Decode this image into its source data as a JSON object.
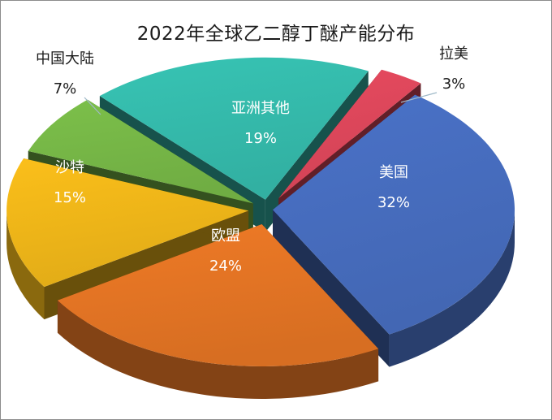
{
  "chart_data": {
    "type": "pie",
    "title": "2022年全球乙二醇丁醚产能分布",
    "slices": [
      {
        "name": "美国",
        "value": 32,
        "label": "32%",
        "color": "#4a72c8"
      },
      {
        "name": "欧盟",
        "value": 24,
        "label": "24%",
        "color": "#ef7a26"
      },
      {
        "name": "沙特",
        "value": 15,
        "label": "15%",
        "color": "#fbbf1a"
      },
      {
        "name": "中国大陆",
        "value": 7,
        "label": "7%",
        "color": "#7cc04a"
      },
      {
        "name": "亚洲其他",
        "value": 19,
        "label": "19%",
        "color": "#37c4b4"
      },
      {
        "name": "拉美",
        "value": 3,
        "label": "3%",
        "color": "#e84a5f"
      }
    ],
    "legend": "none"
  }
}
